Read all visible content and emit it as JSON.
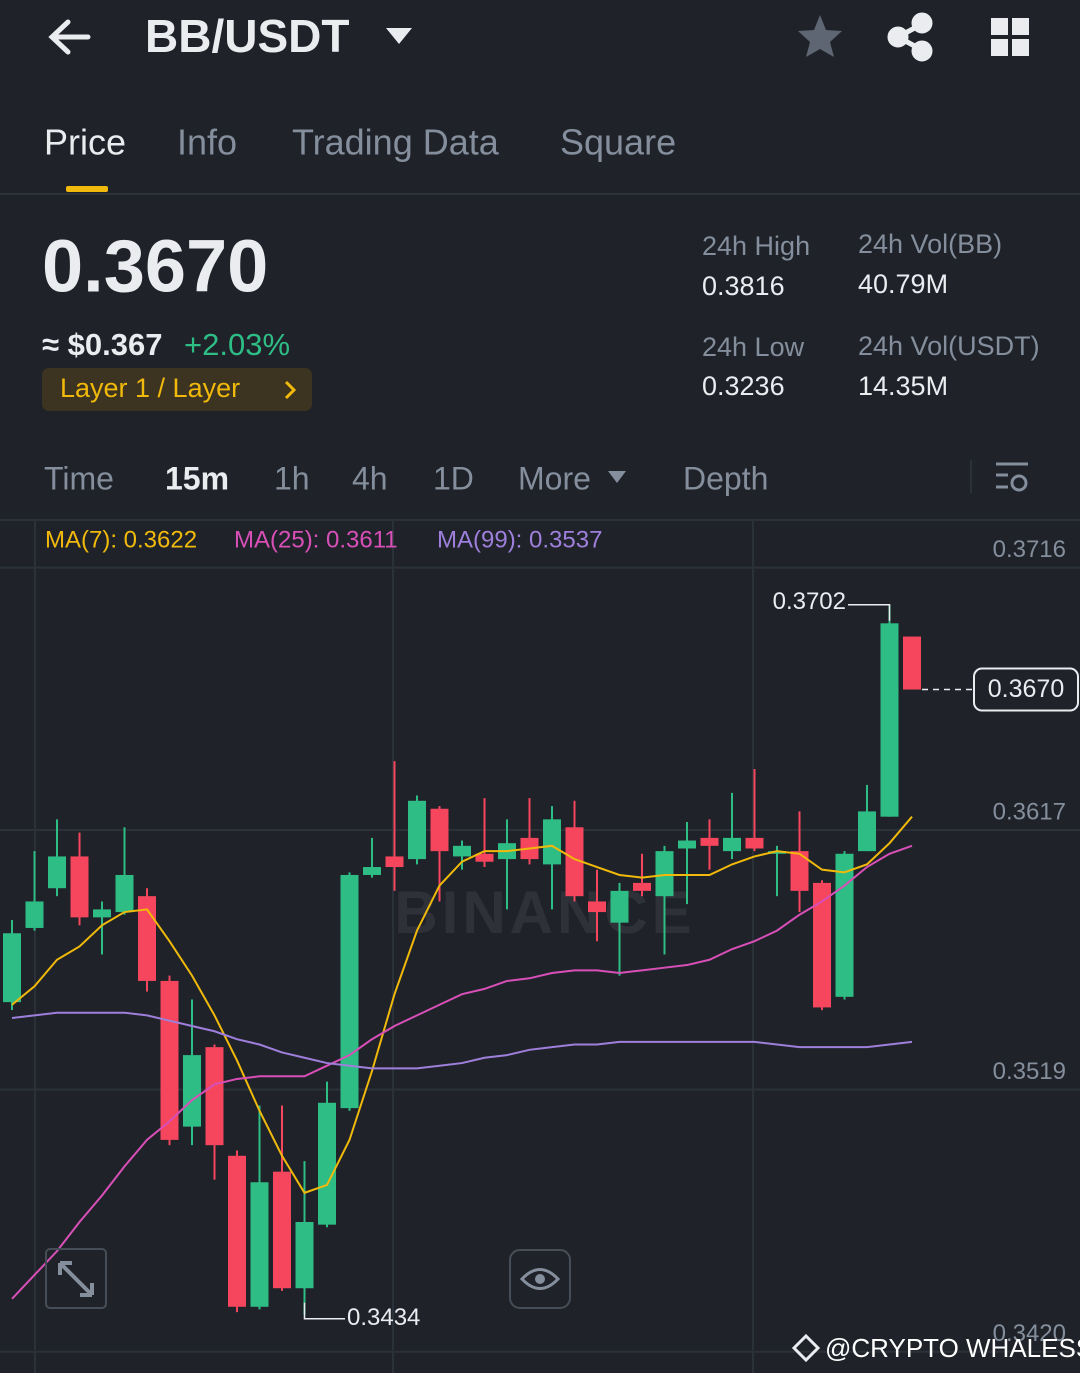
{
  "header": {
    "pair": "BB/USDT"
  },
  "tabs": [
    "Price",
    "Info",
    "Trading Data",
    "Square"
  ],
  "price": {
    "last": "0.3670",
    "fiat": "≈ $0.367",
    "change": "+2.03%",
    "tag": "Layer 1 / Layer"
  },
  "stats": [
    {
      "label": "24h High",
      "value": "0.3816"
    },
    {
      "label": "24h Vol(BB)",
      "value": "40.79M"
    },
    {
      "label": "24h Low",
      "value": "0.3236"
    },
    {
      "label": "24h Vol(USDT)",
      "value": "14.35M"
    }
  ],
  "intervals": [
    "Time",
    "15m",
    "1h",
    "4h",
    "1D",
    "More",
    "Depth"
  ],
  "chart_data": {
    "type": "candlestick",
    "ylim": [
      0.3412,
      0.3734
    ],
    "yticks": [
      0.3716,
      0.3617,
      0.3519,
      {
        "value": 0.342,
        "label": "0.3420"
      }
    ],
    "grid": true,
    "up_color": "#2ebd85",
    "down_color": "#f6465d",
    "candles": {
      "open": [
        0.3552,
        0.358,
        0.3595,
        0.3607,
        0.3584,
        0.3586,
        0.3592,
        0.356,
        0.3505,
        0.3535,
        0.3494,
        0.3437,
        0.3488,
        0.3444,
        0.3468,
        0.3512,
        0.36,
        0.3607,
        0.3606,
        0.3625,
        0.3607,
        0.3608,
        0.3606,
        0.3614,
        0.3604,
        0.3618,
        0.359,
        0.3582,
        0.3597,
        0.3592,
        0.361,
        0.3614,
        0.3609,
        0.3614,
        0.3608,
        0.3609,
        0.3597,
        0.3554,
        0.3609,
        0.3622,
        0.369
      ],
      "high": [
        0.3583,
        0.3609,
        0.3621,
        0.3616,
        0.359,
        0.3618,
        0.3595,
        0.3562,
        0.3553,
        0.3536,
        0.3496,
        0.3513,
        0.3513,
        0.3492,
        0.3522,
        0.3601,
        0.3614,
        0.3643,
        0.363,
        0.3626,
        0.3613,
        0.3629,
        0.3621,
        0.3629,
        0.3626,
        0.3628,
        0.3602,
        0.3597,
        0.3608,
        0.3611,
        0.362,
        0.3621,
        0.3631,
        0.364,
        0.3611,
        0.3624,
        0.3598,
        0.3609,
        0.3634,
        0.3702,
        0.369
      ],
      "low": [
        0.3549,
        0.3579,
        0.3592,
        0.3581,
        0.357,
        0.3585,
        0.3556,
        0.3498,
        0.3498,
        0.3485,
        0.3435,
        0.3436,
        0.3443,
        0.3434,
        0.3467,
        0.3511,
        0.3599,
        0.3594,
        0.3604,
        0.359,
        0.3602,
        0.3603,
        0.3587,
        0.3604,
        0.3587,
        0.359,
        0.3575,
        0.3562,
        0.3592,
        0.357,
        0.3589,
        0.3602,
        0.3606,
        0.3609,
        0.3592,
        0.3586,
        0.3549,
        0.3553,
        0.3609,
        0.3622,
        0.367
      ],
      "close": [
        0.3578,
        0.359,
        0.3607,
        0.3584,
        0.3587,
        0.36,
        0.356,
        0.35,
        0.3532,
        0.3498,
        0.3437,
        0.3484,
        0.3444,
        0.3469,
        0.3514,
        0.36,
        0.3603,
        0.3603,
        0.3628,
        0.3609,
        0.3611,
        0.3605,
        0.3612,
        0.3606,
        0.3621,
        0.3592,
        0.3586,
        0.3594,
        0.3594,
        0.3609,
        0.3613,
        0.3611,
        0.3614,
        0.361,
        0.3609,
        0.3594,
        0.355,
        0.3608,
        0.3624,
        0.3695,
        0.367
      ]
    },
    "series": [
      {
        "name": "MA(7): 0.3622",
        "color": "#f0b90b",
        "values": [
          0.3551,
          0.3558,
          0.3568,
          0.3573,
          0.3581,
          0.3586,
          0.3587,
          0.3575,
          0.3562,
          0.3547,
          0.353,
          0.3511,
          0.3494,
          0.348,
          0.3483,
          0.35,
          0.3526,
          0.3555,
          0.3579,
          0.3596,
          0.3605,
          0.3609,
          0.3609,
          0.361,
          0.3611,
          0.3606,
          0.3603,
          0.36,
          0.3599,
          0.36,
          0.36,
          0.36,
          0.3604,
          0.3607,
          0.3609,
          0.3608,
          0.3602,
          0.3601,
          0.3604,
          0.3612,
          0.3622
        ]
      },
      {
        "name": "MA(25): 0.3611",
        "color": "#d94fb8",
        "values": [
          0.344,
          0.3449,
          0.3458,
          0.3469,
          0.3479,
          0.349,
          0.35,
          0.3507,
          0.3515,
          0.3521,
          0.3523,
          0.3524,
          0.3524,
          0.3524,
          0.3528,
          0.3532,
          0.3538,
          0.3543,
          0.3547,
          0.3551,
          0.3555,
          0.3557,
          0.356,
          0.3561,
          0.3563,
          0.3564,
          0.3564,
          0.3563,
          0.3564,
          0.3565,
          0.3566,
          0.3568,
          0.3572,
          0.3575,
          0.3579,
          0.3585,
          0.359,
          0.3596,
          0.3603,
          0.3608,
          0.3611
        ]
      },
      {
        "name": "MA(99): 0.3537",
        "color": "#9f7fdc",
        "values": [
          0.3546,
          0.3547,
          0.3548,
          0.3548,
          0.3548,
          0.3548,
          0.3547,
          0.3545,
          0.3543,
          0.3541,
          0.3538,
          0.3536,
          0.3533,
          0.3531,
          0.3529,
          0.3528,
          0.3527,
          0.3527,
          0.3527,
          0.3528,
          0.3529,
          0.3531,
          0.3532,
          0.3534,
          0.3535,
          0.3536,
          0.3536,
          0.3537,
          0.3537,
          0.3537,
          0.3537,
          0.3537,
          0.3537,
          0.3537,
          0.3536,
          0.3535,
          0.3535,
          0.3535,
          0.3535,
          0.3536,
          0.3537
        ]
      }
    ],
    "high_label": 0.3702,
    "low_label": 0.3434,
    "last_price": {
      "value": 0.367,
      "label": "0.3670"
    },
    "watermark": "BINANCE"
  },
  "credit": "@CRYPTO WHALESS"
}
